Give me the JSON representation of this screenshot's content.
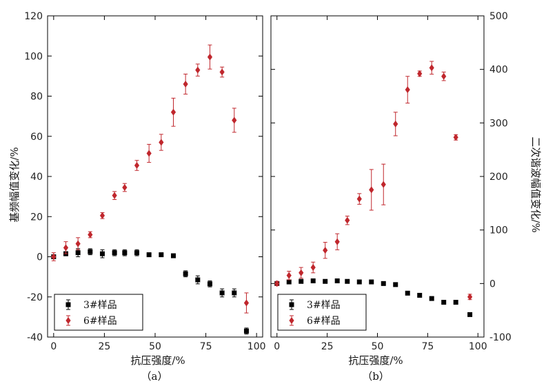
{
  "chart_data": [
    {
      "type": "scatter",
      "panel_label": "（a）",
      "xlabel": "抗压强度/%",
      "ylabel": "基频幅值变化/%",
      "xlim": [
        -3,
        103
      ],
      "ylim": [
        -40,
        120
      ],
      "xticks": [
        0,
        25,
        50,
        75,
        100
      ],
      "yticks": [
        -40,
        -20,
        0,
        20,
        40,
        60,
        80,
        100,
        120
      ],
      "legend_position": "bottom-left",
      "series": [
        {
          "name": "3#样品",
          "marker": "square",
          "color": "#000000",
          "x": [
            0,
            6,
            12,
            18,
            24,
            30,
            35,
            41,
            47,
            53,
            59,
            65,
            71,
            77,
            83,
            89,
            95
          ],
          "y": [
            0,
            1.5,
            2,
            2.5,
            1.5,
            2,
            2,
            2,
            1,
            1,
            0.5,
            -8.5,
            -11.5,
            -13.5,
            -18,
            -18,
            -37
          ],
          "err": [
            1,
            1,
            2,
            1.5,
            2,
            1.5,
            1.5,
            1.5,
            1,
            1,
            1,
            1.5,
            2,
            1.5,
            2,
            2,
            1.5
          ]
        },
        {
          "name": "6#样品",
          "marker": "diamond",
          "color": "#c0272d",
          "x": [
            0,
            6,
            12,
            18,
            24,
            30,
            35,
            41,
            47,
            53,
            59,
            65,
            71,
            77,
            83,
            89,
            95
          ],
          "y": [
            0,
            4.5,
            6.5,
            11,
            20.5,
            30.5,
            34.5,
            45.5,
            51.5,
            57,
            72,
            86,
            93,
            99.5,
            92,
            68,
            -23
          ],
          "err": [
            2,
            3,
            3,
            1.5,
            1.5,
            2,
            2,
            2.5,
            4.5,
            4,
            7,
            5,
            3,
            6,
            2.5,
            6,
            5
          ]
        }
      ]
    },
    {
      "type": "scatter",
      "panel_label": "（b）",
      "xlabel": "抗压强度/%",
      "ylabel": "二次谐波幅值变化/%",
      "xlim": [
        -3,
        103
      ],
      "ylim": [
        -100,
        500
      ],
      "xticks": [
        0,
        25,
        50,
        75,
        100
      ],
      "yticks": [
        -100,
        0,
        100,
        200,
        300,
        400,
        500
      ],
      "legend_position": "bottom-left",
      "series": [
        {
          "name": "3#样品",
          "marker": "square",
          "color": "#000000",
          "x": [
            0,
            6,
            12,
            18,
            24,
            30,
            35,
            41,
            47,
            53,
            59,
            65,
            71,
            77,
            83,
            89,
            96
          ],
          "y": [
            0,
            3,
            4,
            5,
            4,
            5,
            4,
            3,
            3,
            0,
            -2,
            -18,
            -22,
            -28,
            -35,
            -35,
            -58
          ],
          "err": [
            2,
            2,
            2,
            2,
            2,
            2,
            2,
            2,
            2,
            2,
            2,
            2,
            2,
            2,
            2,
            2,
            2
          ]
        },
        {
          "name": "6#样品",
          "marker": "diamond",
          "color": "#c0272d",
          "x": [
            0,
            6,
            12,
            18,
            24,
            30,
            35,
            41,
            47,
            53,
            59,
            65,
            71,
            77,
            83,
            89,
            96
          ],
          "y": [
            0,
            15,
            20,
            30,
            62,
            78,
            118,
            158,
            175,
            185,
            298,
            362,
            392,
            403,
            387,
            273,
            -25
          ],
          "err": [
            4,
            8,
            10,
            10,
            15,
            15,
            8,
            10,
            38,
            38,
            22,
            25,
            5,
            12,
            8,
            5,
            5
          ]
        }
      ]
    }
  ]
}
